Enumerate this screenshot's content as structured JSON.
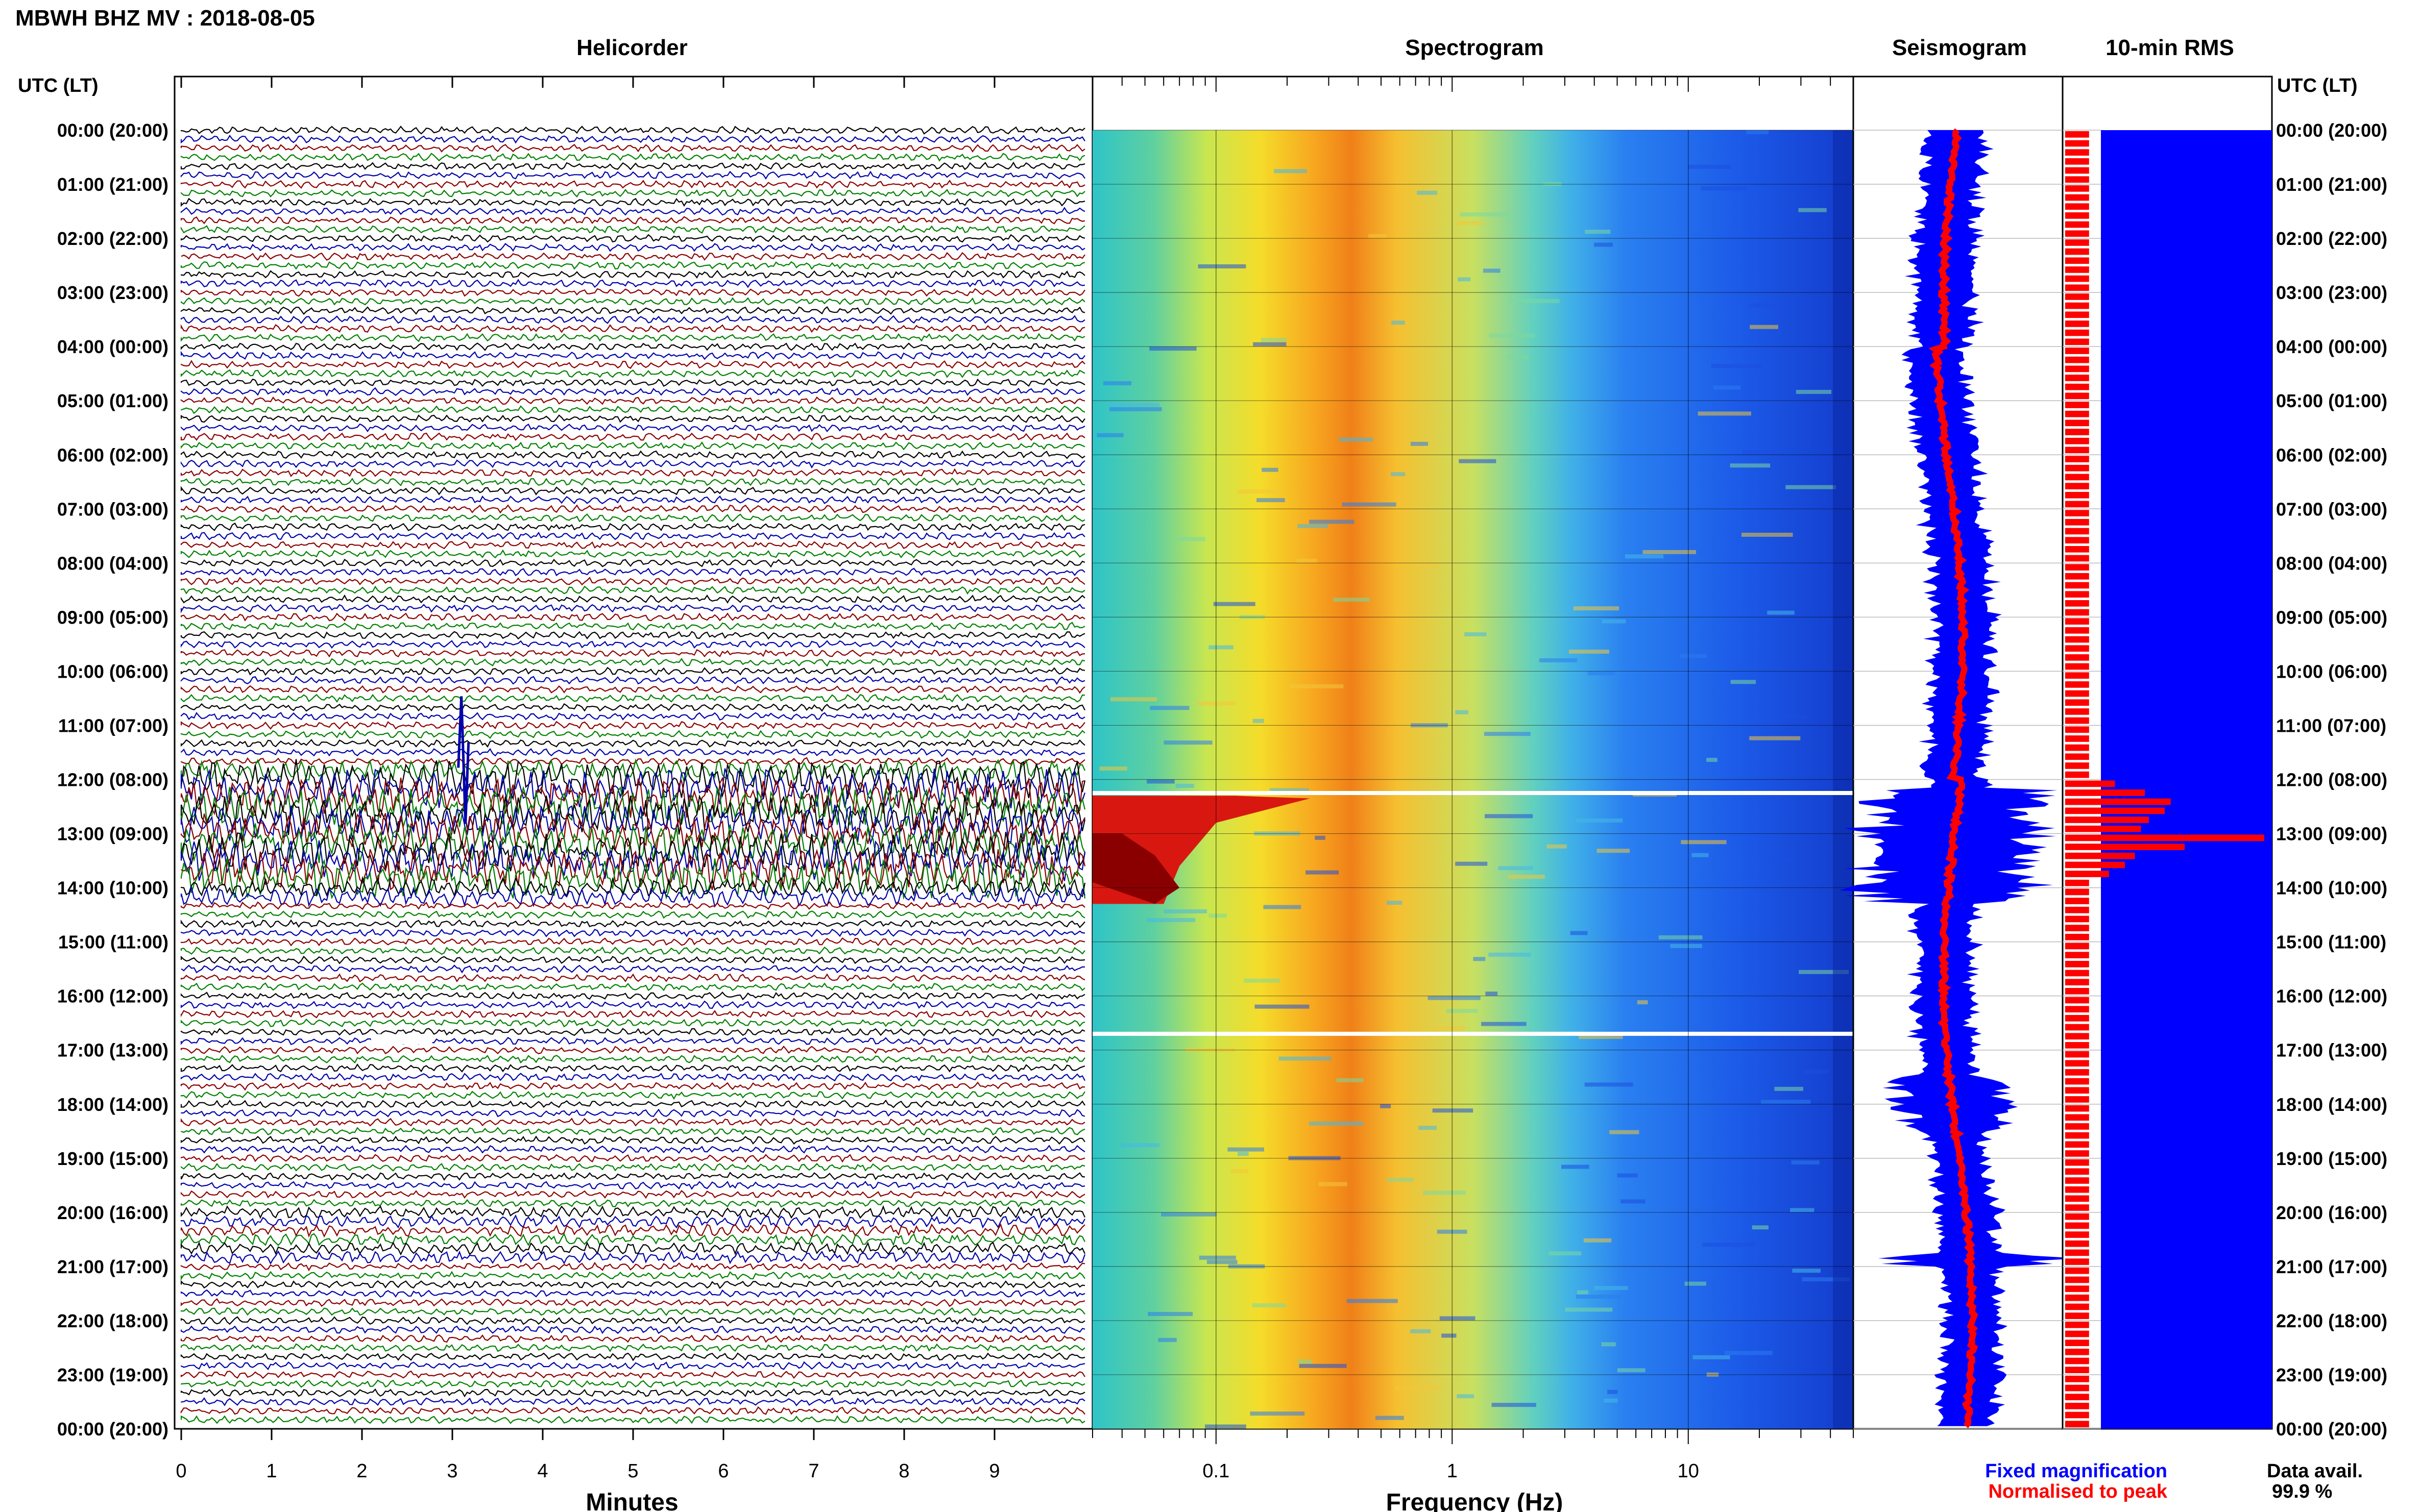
{
  "header": {
    "title": "MBWH BHZ MV : 2018-08-05",
    "utc_label_left": "UTC (LT)",
    "utc_label_right": "UTC (LT)"
  },
  "panels": {
    "helicorder": "Helicorder",
    "spectrogram": "Spectrogram",
    "seismogram": "Seismogram",
    "rms": "10-min RMS"
  },
  "axes": {
    "minutes_label": "Minutes",
    "frequency_label": "Frequency (Hz)"
  },
  "time_ticks": [
    "00:00 (20:00)",
    "01:00 (21:00)",
    "02:00 (22:00)",
    "03:00 (23:00)",
    "04:00 (00:00)",
    "05:00 (01:00)",
    "06:00 (02:00)",
    "07:00 (03:00)",
    "08:00 (04:00)",
    "09:00 (05:00)",
    "10:00 (06:00)",
    "11:00 (07:00)",
    "12:00 (08:00)",
    "13:00 (09:00)",
    "14:00 (10:00)",
    "15:00 (11:00)",
    "16:00 (12:00)",
    "17:00 (13:00)",
    "18:00 (14:00)",
    "19:00 (15:00)",
    "20:00 (16:00)",
    "21:00 (17:00)",
    "22:00 (18:00)",
    "23:00 (19:00)",
    "00:00 (20:00)"
  ],
  "minute_ticks": [
    "0",
    "1",
    "2",
    "3",
    "4",
    "5",
    "6",
    "7",
    "8",
    "9"
  ],
  "freq_ticks": [
    "0.1",
    "1",
    "10"
  ],
  "legend": {
    "fixed": "Fixed magnification",
    "normalised": "Normalised to peak",
    "fixed_color": "#0000ff",
    "normalised_color": "#ff0000"
  },
  "data_avail": {
    "label": "Data avail.",
    "value": "99.9 %"
  },
  "colors": {
    "trace_cycle": [
      "#000000",
      "#0000aa",
      "#8b0000",
      "#008000"
    ],
    "fixed": "#0000ff",
    "normalised": "#ff0000"
  },
  "chart_data": {
    "type": "heatmap",
    "title": "MBWH BHZ MV : 2018-08-05",
    "time_range_utc": [
      "00:00",
      "24:00"
    ],
    "helicorder": {
      "xlabel": "Minutes",
      "xlim": [
        0,
        10
      ],
      "row_length_min": 10,
      "rows": 144,
      "events": [
        {
          "time_utc": "11:30",
          "minute": 3.1,
          "note": "large spike"
        },
        {
          "time_utc": "12:00-14:00",
          "note": "high amplitude"
        },
        {
          "time_utc": "20:30",
          "note": "repeating events"
        }
      ]
    },
    "spectrogram": {
      "xlabel": "Frequency (Hz)",
      "xscale": "log",
      "xlim": [
        0.03,
        50
      ],
      "peak_band_hz": [
        0.25,
        0.6
      ],
      "event_time_utc": "12:00-14:00"
    },
    "rms_10min": {
      "times": [
        "12:00",
        "12:10",
        "12:20",
        "12:30",
        "12:40",
        "12:50",
        "13:00",
        "13:10",
        "13:20",
        "13:30",
        "13:40"
      ],
      "normalised": [
        0.25,
        0.4,
        0.53,
        0.5,
        0.42,
        0.38,
        1.0,
        0.6,
        0.35,
        0.3,
        0.22
      ],
      "baseline_normalised": 0.12
    }
  }
}
